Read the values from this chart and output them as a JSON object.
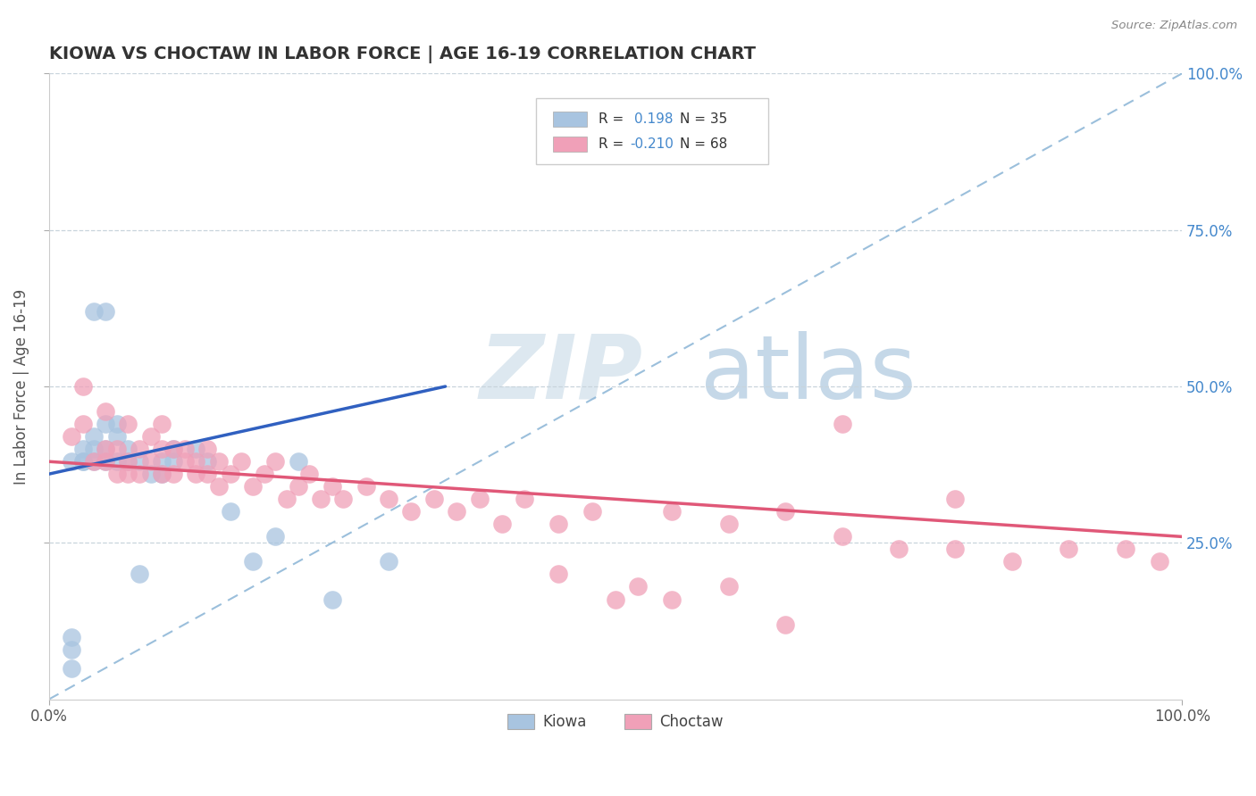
{
  "title": "KIOWA VS CHOCTAW IN LABOR FORCE | AGE 16-19 CORRELATION CHART",
  "source": "Source: ZipAtlas.com",
  "ylabel": "In Labor Force | Age 16-19",
  "xlim": [
    0.0,
    1.0
  ],
  "ylim": [
    0.0,
    1.0
  ],
  "ytick_positions": [
    0.25,
    0.5,
    0.75,
    1.0
  ],
  "right_ytick_labels": [
    "25.0%",
    "50.0%",
    "75.0%",
    "100.0%"
  ],
  "kiowa_R": 0.198,
  "kiowa_N": 35,
  "choctaw_R": -0.21,
  "choctaw_N": 68,
  "kiowa_color": "#a8c4e0",
  "choctaw_color": "#f0a0b8",
  "kiowa_line_color": "#3060c0",
  "choctaw_line_color": "#e05878",
  "diagonal_color": "#90b8d8",
  "background_color": "#ffffff",
  "kiowa_x": [
    0.02,
    0.02,
    0.02,
    0.02,
    0.03,
    0.03,
    0.03,
    0.04,
    0.04,
    0.04,
    0.04,
    0.05,
    0.05,
    0.05,
    0.05,
    0.06,
    0.06,
    0.06,
    0.07,
    0.07,
    0.08,
    0.08,
    0.09,
    0.1,
    0.1,
    0.11,
    0.11,
    0.13,
    0.14,
    0.16,
    0.18,
    0.2,
    0.22,
    0.25,
    0.3
  ],
  "kiowa_y": [
    0.05,
    0.08,
    0.1,
    0.38,
    0.38,
    0.38,
    0.4,
    0.38,
    0.4,
    0.42,
    0.62,
    0.38,
    0.4,
    0.44,
    0.62,
    0.38,
    0.42,
    0.44,
    0.38,
    0.4,
    0.2,
    0.38,
    0.36,
    0.36,
    0.38,
    0.38,
    0.4,
    0.4,
    0.38,
    0.3,
    0.22,
    0.26,
    0.38,
    0.16,
    0.22
  ],
  "choctaw_x": [
    0.02,
    0.03,
    0.03,
    0.04,
    0.05,
    0.05,
    0.05,
    0.06,
    0.06,
    0.07,
    0.07,
    0.07,
    0.08,
    0.08,
    0.09,
    0.09,
    0.1,
    0.1,
    0.1,
    0.11,
    0.11,
    0.12,
    0.12,
    0.13,
    0.13,
    0.14,
    0.14,
    0.15,
    0.15,
    0.16,
    0.17,
    0.18,
    0.19,
    0.2,
    0.21,
    0.22,
    0.23,
    0.24,
    0.25,
    0.26,
    0.28,
    0.3,
    0.32,
    0.34,
    0.36,
    0.38,
    0.4,
    0.42,
    0.45,
    0.48,
    0.5,
    0.52,
    0.55,
    0.6,
    0.65,
    0.7,
    0.75,
    0.8,
    0.85,
    0.9,
    0.95,
    0.98,
    0.45,
    0.6,
    0.7,
    0.8,
    0.55,
    0.65
  ],
  "choctaw_y": [
    0.42,
    0.44,
    0.5,
    0.38,
    0.38,
    0.4,
    0.46,
    0.36,
    0.4,
    0.36,
    0.38,
    0.44,
    0.36,
    0.4,
    0.38,
    0.42,
    0.36,
    0.4,
    0.44,
    0.36,
    0.4,
    0.38,
    0.4,
    0.36,
    0.38,
    0.36,
    0.4,
    0.34,
    0.38,
    0.36,
    0.38,
    0.34,
    0.36,
    0.38,
    0.32,
    0.34,
    0.36,
    0.32,
    0.34,
    0.32,
    0.34,
    0.32,
    0.3,
    0.32,
    0.3,
    0.32,
    0.28,
    0.32,
    0.28,
    0.3,
    0.16,
    0.18,
    0.3,
    0.28,
    0.3,
    0.26,
    0.24,
    0.24,
    0.22,
    0.24,
    0.24,
    0.22,
    0.2,
    0.18,
    0.44,
    0.32,
    0.16,
    0.12
  ],
  "kiowa_line_x": [
    0.0,
    0.35
  ],
  "kiowa_line_y": [
    0.36,
    0.5
  ],
  "choctaw_line_x": [
    0.0,
    1.0
  ],
  "choctaw_line_y": [
    0.38,
    0.26
  ]
}
